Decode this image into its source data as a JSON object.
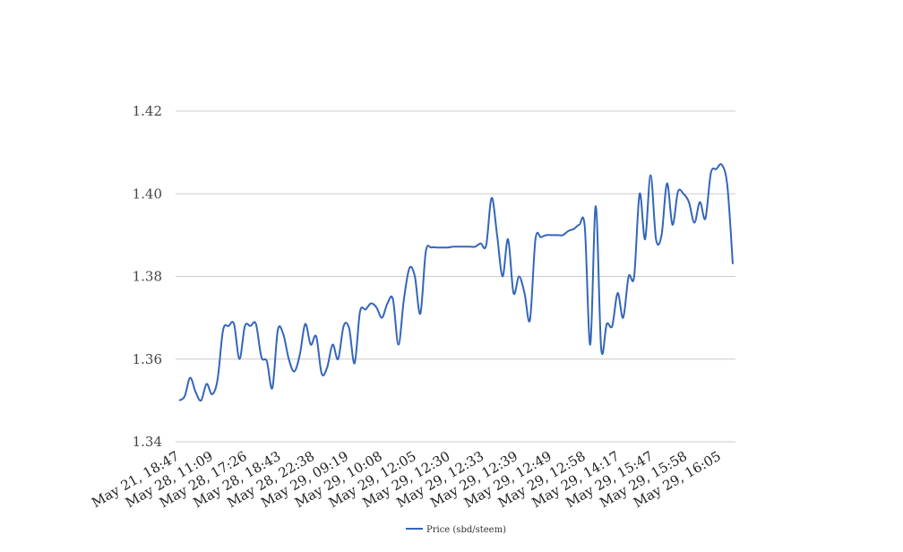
{
  "chart_data": {
    "type": "line",
    "title": "",
    "xlabel": "",
    "ylabel": "",
    "ylim": [
      1.34,
      1.42
    ],
    "y_ticks": [
      "1.34",
      "1.36",
      "1.38",
      "1.40",
      "1.42"
    ],
    "grid": true,
    "legend_position": "bottom",
    "x_tick_labels": [
      "May 21, 18:47",
      "May 28, 11:09",
      "May 28, 17:26",
      "May 28, 18:43",
      "May 28, 22:38",
      "May 29, 09:19",
      "May 29, 10:08",
      "May 29, 12:05",
      "May 29, 12:30",
      "May 29, 12:33",
      "May 29, 12:39",
      "May 29, 12:49",
      "May 29, 12:58",
      "May 29, 14:17",
      "May 29, 15:47",
      "May 29, 15:58",
      "May 29, 16:05"
    ],
    "series": [
      {
        "name": "Price (sbd/steem)",
        "color": "#3366bb",
        "values": [
          1.35,
          1.351,
          1.3555,
          1.352,
          1.35,
          1.354,
          1.3515,
          1.355,
          1.367,
          1.368,
          1.3685,
          1.36,
          1.368,
          1.368,
          1.3685,
          1.3605,
          1.3595,
          1.353,
          1.367,
          1.366,
          1.36,
          1.357,
          1.361,
          1.3685,
          1.3635,
          1.3655,
          1.3565,
          1.358,
          1.3635,
          1.36,
          1.368,
          1.3675,
          1.359,
          1.3715,
          1.372,
          1.3735,
          1.3725,
          1.37,
          1.3735,
          1.3745,
          1.3635,
          1.3745,
          1.382,
          1.38,
          1.371,
          1.386,
          1.387,
          1.387,
          1.387,
          1.387,
          1.3872,
          1.3872,
          1.3872,
          1.3872,
          1.3872,
          1.388,
          1.3875,
          1.399,
          1.39,
          1.38,
          1.389,
          1.376,
          1.38,
          1.376,
          1.3695,
          1.389,
          1.3895,
          1.39,
          1.39,
          1.39,
          1.39,
          1.391,
          1.3915,
          1.3925,
          1.392,
          1.3635,
          1.397,
          1.3625,
          1.3685,
          1.368,
          1.376,
          1.37,
          1.38,
          1.38,
          1.4,
          1.389,
          1.4045,
          1.389,
          1.39,
          1.4025,
          1.3925,
          1.4005,
          1.4,
          1.398,
          1.393,
          1.398,
          1.394,
          1.405,
          1.406,
          1.407,
          1.402,
          1.383
        ]
      }
    ]
  }
}
